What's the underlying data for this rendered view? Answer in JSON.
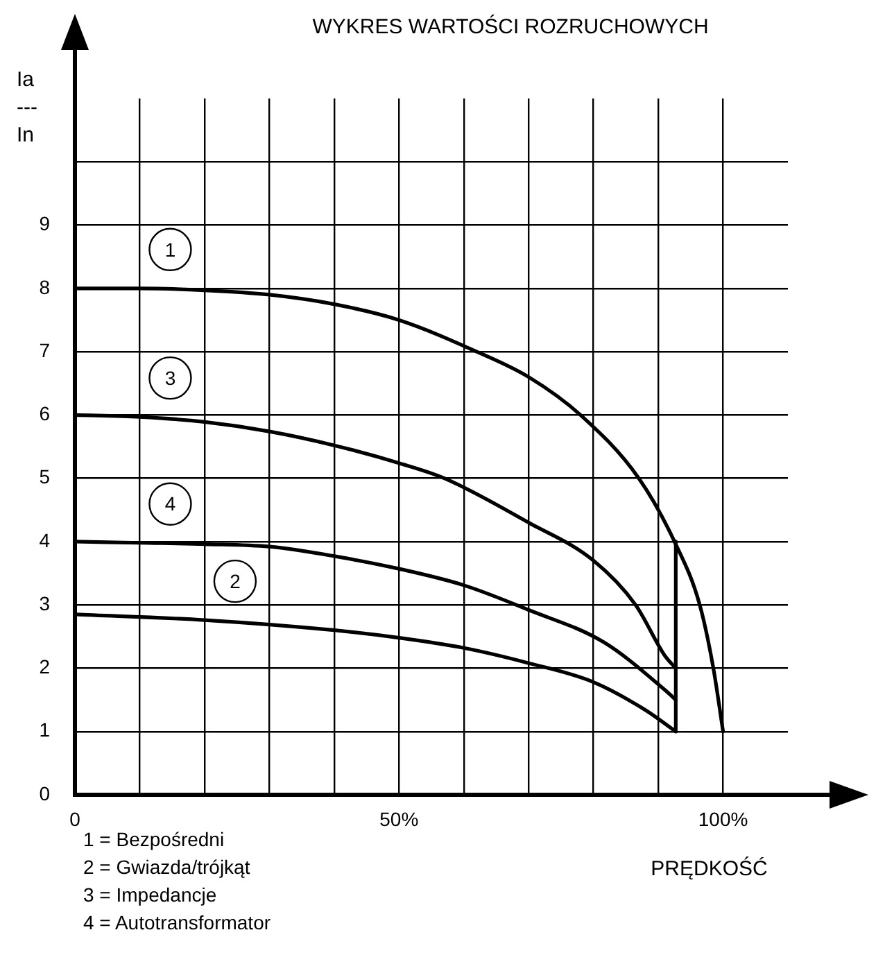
{
  "chart_data": {
    "type": "line",
    "title": "WYKRES WARTOŚCI ROZRUCHOWYCH",
    "xlabel": "PRĘDKOŚĆ",
    "ylabel": "Ia\n---\nIn",
    "xlim": [
      0,
      110
    ],
    "ylim": [
      0,
      11
    ],
    "xticks": [
      0,
      {
        "value": 10,
        "label": null
      },
      {
        "value": 20,
        "label": null
      },
      {
        "value": 30,
        "label": null
      },
      {
        "value": 40,
        "label": null
      },
      {
        "value": 50,
        "label": "50%"
      },
      {
        "value": 60,
        "label": null
      },
      {
        "value": 70,
        "label": null
      },
      {
        "value": 80,
        "label": null
      },
      {
        "value": 90,
        "label": null
      },
      {
        "value": 100,
        "label": "100%"
      }
    ],
    "yticks": [
      0,
      1,
      2,
      3,
      4,
      5,
      6,
      7,
      8,
      9,
      {
        "value": 10,
        "label": null
      }
    ],
    "grid": true,
    "marker": "none",
    "line_style": "solid",
    "series": [
      {
        "name": "1",
        "color": "#000000",
        "x": [
          0,
          10,
          20,
          30,
          40,
          50,
          62,
          70,
          78,
          87,
          92.5,
          96.4,
          98.5,
          100
        ],
        "values": [
          8,
          8,
          7.97,
          7.9,
          7.75,
          7.5,
          7,
          6.6,
          6,
          5,
          4,
          3,
          2,
          1
        ]
      },
      {
        "name": "3",
        "color": "#000000",
        "x": [
          0,
          10,
          20,
          30,
          40,
          50,
          57,
          70,
          80,
          86.5,
          91,
          92.7
        ],
        "values": [
          6,
          5.97,
          5.89,
          5.74,
          5.52,
          5.24,
          5,
          4.3,
          3.7,
          3,
          2.2,
          2
        ]
      },
      {
        "name": "4",
        "color": "#000000",
        "x": [
          0,
          10,
          20,
          30,
          40,
          50,
          60,
          70,
          81.6,
          91.2,
          92.7
        ],
        "values": [
          4,
          3.98,
          3.96,
          3.92,
          3.77,
          3.57,
          3.31,
          2.92,
          2.41,
          1.64,
          1.5
        ]
      },
      {
        "name": "2",
        "color": "#000000",
        "x": [
          0,
          20,
          40,
          50,
          60,
          70,
          80,
          88,
          92.7
        ],
        "values": [
          2.85,
          2.76,
          2.6,
          2.48,
          2.32,
          2.08,
          1.78,
          1.34,
          1
        ]
      },
      {
        "color": "#000000",
        "x": [
          92.7,
          92.7
        ],
        "values": [
          1,
          4
        ]
      }
    ],
    "annotations": [
      "1 = Bezpośredni",
      "2 = Gwiazda/trójkąt",
      "3 = Impedancje",
      "4 = Autotransformator"
    ]
  }
}
